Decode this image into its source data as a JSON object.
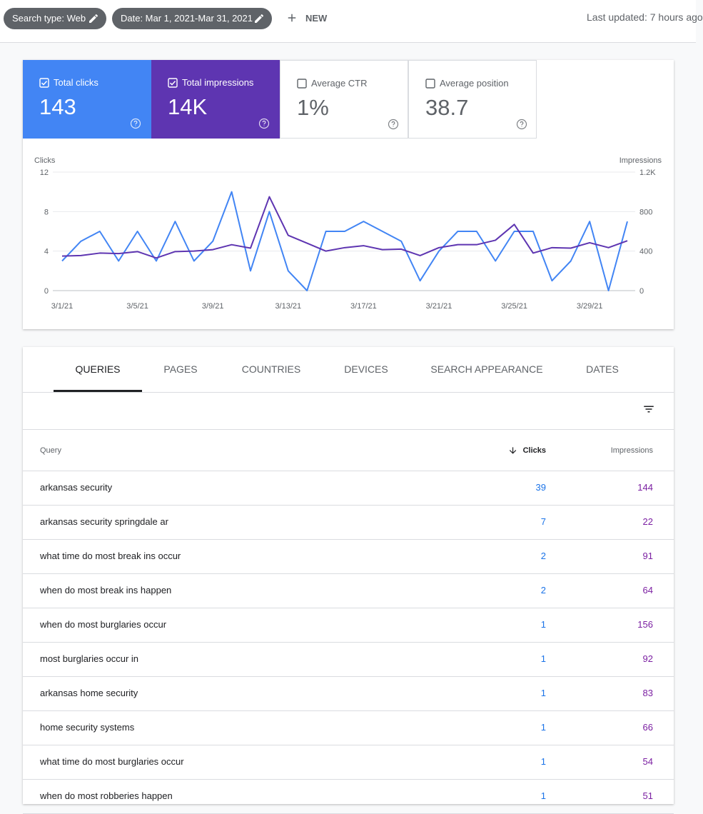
{
  "toolbar": {
    "filters": [
      "Search type: Web",
      "Date: Mar 1, 2021-Mar 31, 2021"
    ],
    "new_button": "NEW",
    "last_updated": "Last updated: 7 hours ago"
  },
  "metrics": [
    {
      "label": "Total clicks",
      "value": "143",
      "checked": true
    },
    {
      "label": "Total impressions",
      "value": "14K",
      "checked": true
    },
    {
      "label": "Average CTR",
      "value": "1%",
      "checked": false
    },
    {
      "label": "Average position",
      "value": "38.7",
      "checked": false
    }
  ],
  "chart_data": {
    "type": "line",
    "ylabel": "Clicks",
    "y2label": "Impressions",
    "categories": [
      "3/1/21",
      null,
      null,
      null,
      "3/5/21",
      null,
      null,
      null,
      "3/9/21",
      null,
      null,
      null,
      "3/13/21",
      null,
      null,
      null,
      "3/17/21",
      null,
      null,
      null,
      "3/21/21",
      null,
      null,
      null,
      "3/25/21",
      null,
      null,
      null,
      "3/29/21",
      null,
      null
    ],
    "series": [
      {
        "name": "Clicks",
        "color": "#4285f4",
        "values": [
          3,
          5,
          6,
          3,
          6,
          3,
          7,
          3,
          5,
          10,
          2,
          8,
          2,
          0,
          6,
          6,
          7,
          6,
          5,
          1,
          4,
          6,
          6,
          3,
          6,
          6,
          1,
          3,
          7,
          0,
          7
        ]
      },
      {
        "name": "Impressions",
        "color": "#5e35b1",
        "axis": "y2",
        "values": [
          350,
          355,
          380,
          375,
          395,
          330,
          395,
          400,
          415,
          465,
          430,
          950,
          560,
          480,
          400,
          435,
          455,
          415,
          420,
          355,
          435,
          465,
          465,
          510,
          670,
          380,
          435,
          430,
          485,
          435,
          505
        ]
      }
    ],
    "ylim": [
      0,
      12
    ],
    "yticks": [
      0,
      4,
      8,
      12
    ],
    "y2lim": [
      0,
      1200
    ],
    "y2ticks": [
      0,
      400,
      800,
      {
        "value": 1200,
        "label": "1.2K"
      }
    ],
    "grid": true
  },
  "table": {
    "tabs": [
      "QUERIES",
      "PAGES",
      "COUNTRIES",
      "DEVICES",
      "SEARCH APPEARANCE",
      "DATES"
    ],
    "active_tab": 0,
    "columns": [
      "Query",
      "Clicks",
      "Impressions"
    ],
    "rows": [
      [
        "arkansas security",
        39,
        144
      ],
      [
        "arkansas security springdale ar",
        7,
        22
      ],
      [
        "what time do most break ins occur",
        2,
        91
      ],
      [
        "when do most break ins happen",
        2,
        64
      ],
      [
        "when do most burglaries occur",
        1,
        156
      ],
      [
        "most burglaries occur in",
        1,
        92
      ],
      [
        "arkansas home security",
        1,
        83
      ],
      [
        "home security systems",
        1,
        66
      ],
      [
        "what time do most burglaries occur",
        1,
        54
      ],
      [
        "when do most robberies happen",
        1,
        51
      ]
    ]
  }
}
